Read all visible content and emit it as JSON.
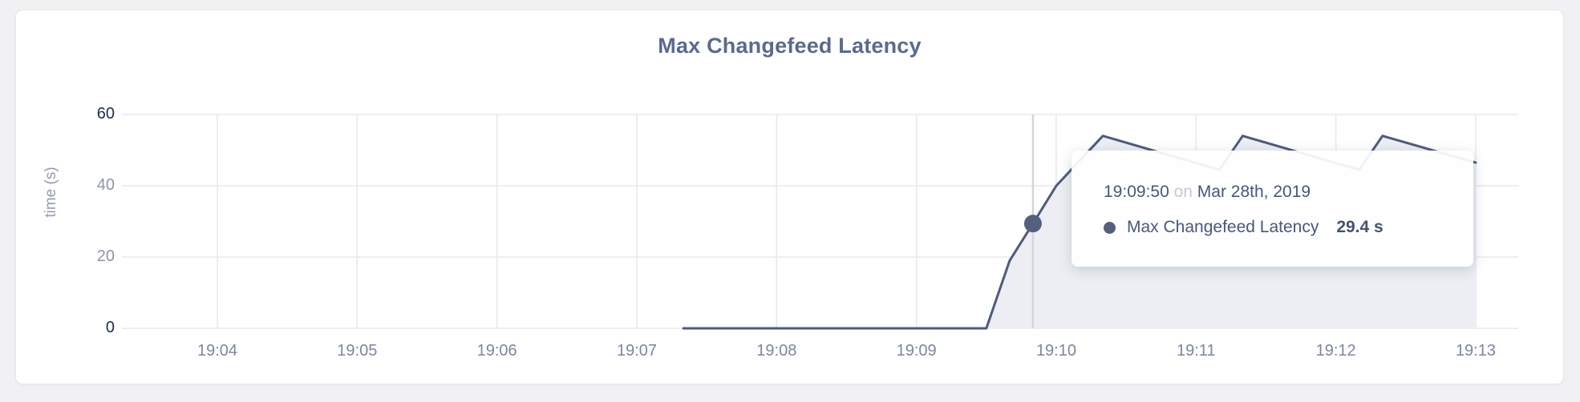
{
  "card": {
    "kind": "metric-graph-card"
  },
  "chart_data": {
    "type": "area",
    "title": "Max Changefeed Latency",
    "xlabel": "",
    "ylabel": "time (s)",
    "ylim": [
      0,
      60
    ],
    "grid": true,
    "legend": "none",
    "x_ticks": [
      "19:04",
      "19:05",
      "19:06",
      "19:07",
      "19:08",
      "19:09",
      "19:10",
      "19:11",
      "19:12",
      "19:13"
    ],
    "y_ticks": [
      {
        "v": 0,
        "label": "0",
        "emphasis": true
      },
      {
        "v": 20,
        "label": "20",
        "emphasis": false
      },
      {
        "v": 40,
        "label": "40",
        "emphasis": false
      },
      {
        "v": 60,
        "label": "60",
        "emphasis": true
      }
    ],
    "series": [
      {
        "name": "Max Changefeed Latency",
        "unit": "s",
        "color": "#4d5b7c",
        "fill": "#eceef3",
        "points": [
          {
            "t": "19:07:20",
            "v": 0
          },
          {
            "t": "19:09:30",
            "v": 0
          },
          {
            "t": "19:09:40",
            "v": 19
          },
          {
            "t": "19:09:50",
            "v": 29.4
          },
          {
            "t": "19:10:00",
            "v": 40
          },
          {
            "t": "19:10:10",
            "v": 47
          },
          {
            "t": "19:10:20",
            "v": 54
          },
          {
            "t": "19:11:10",
            "v": 44.5
          },
          {
            "t": "19:11:20",
            "v": 54
          },
          {
            "t": "19:12:10",
            "v": 44.5
          },
          {
            "t": "19:12:20",
            "v": 54
          },
          {
            "t": "19:13:00",
            "v": 46.5
          }
        ]
      }
    ],
    "hover": {
      "time": "19:09:50",
      "value": 29.4
    }
  },
  "tooltip": {
    "time": "19:09:50",
    "connector": "on",
    "date": "Mar 28th, 2019",
    "series_label": "Max Changefeed Latency",
    "value": "29.4 s"
  },
  "colors": {
    "page_background": "#f1f1f4",
    "card_background": "#ffffff",
    "title": "#5a6a8e",
    "line": "#4d5b7c",
    "area_fill": "#eceef3",
    "gridline": "#e8e9ed",
    "crosshair": "#d4d6db",
    "hover_dot": "#55607f",
    "x_tick_label": "#7b86a0",
    "y_tick_label": "#8d95a8",
    "y_tick_label_emphasis": "#1d2b4e",
    "tooltip_text": "#47587a",
    "tooltip_muted": "#c5c9d2"
  }
}
